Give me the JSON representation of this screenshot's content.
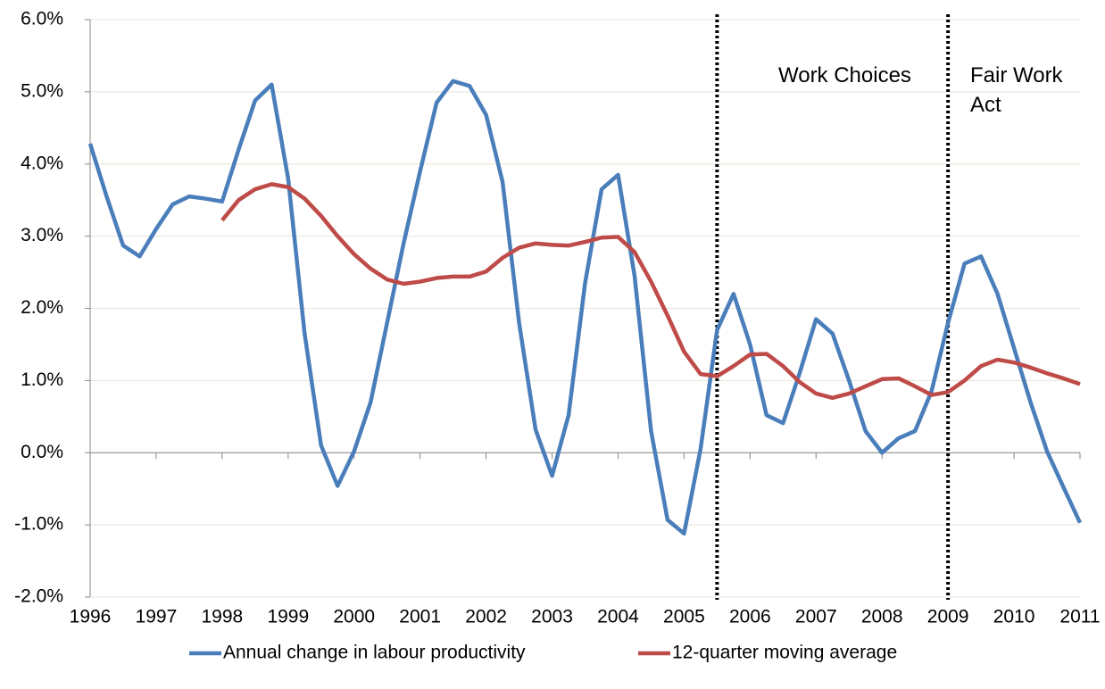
{
  "chart_data": {
    "type": "line",
    "x": [
      1996,
      1996.25,
      1996.5,
      1996.75,
      1997,
      1997.25,
      1997.5,
      1997.75,
      1998,
      1998.25,
      1998.5,
      1998.75,
      1999,
      1999.25,
      1999.5,
      1999.75,
      2000,
      2000.25,
      2000.5,
      2000.75,
      2001,
      2001.25,
      2001.5,
      2001.75,
      2002,
      2002.25,
      2002.5,
      2002.75,
      2003,
      2003.25,
      2003.5,
      2003.75,
      2004,
      2004.25,
      2004.5,
      2004.75,
      2005,
      2005.25,
      2005.5,
      2005.75,
      2006,
      2006.25,
      2006.5,
      2006.75,
      2007,
      2007.25,
      2007.5,
      2007.75,
      2008,
      2008.25,
      2008.5,
      2008.75,
      2009,
      2009.25,
      2009.5,
      2009.75,
      2010,
      2010.25,
      2010.5,
      2010.75,
      2011
    ],
    "series": [
      {
        "name": "Annual change in labour productivity",
        "color": "#4a7ebb",
        "values": [
          4.28,
          3.55,
          2.87,
          2.72,
          3.1,
          3.44,
          3.55,
          3.52,
          3.48,
          4.2,
          4.88,
          5.1,
          3.8,
          1.65,
          0.1,
          -0.46,
          0.02,
          0.7,
          1.8,
          2.9,
          3.9,
          4.85,
          5.15,
          5.08,
          4.68,
          3.75,
          1.8,
          0.32,
          -0.32,
          0.52,
          2.35,
          3.65,
          3.85,
          2.45,
          0.3,
          -0.93,
          -1.12,
          0.05,
          1.7,
          2.2,
          1.5,
          0.52,
          0.41,
          1.1,
          1.85,
          1.65,
          1.0,
          0.3,
          0.0,
          0.2,
          0.3,
          0.85,
          1.8,
          2.62,
          2.72,
          2.2,
          1.45,
          0.7,
          0.02,
          -0.48,
          -0.97
        ]
      },
      {
        "name": "12-quarter moving average",
        "color": "#be4b48",
        "values": [
          null,
          null,
          null,
          null,
          null,
          null,
          null,
          null,
          3.22,
          3.5,
          3.65,
          3.72,
          3.68,
          3.52,
          3.28,
          3.0,
          2.75,
          2.55,
          2.4,
          2.34,
          2.37,
          2.42,
          2.44,
          2.44,
          2.51,
          2.7,
          2.84,
          2.9,
          2.88,
          2.87,
          2.92,
          2.98,
          2.99,
          2.78,
          2.37,
          1.9,
          1.4,
          1.09,
          1.06,
          1.2,
          1.36,
          1.37,
          1.2,
          0.98,
          0.82,
          0.76,
          0.82,
          0.92,
          1.02,
          1.03,
          0.92,
          0.8,
          0.84,
          1.0,
          1.2,
          1.29,
          1.25,
          1.18,
          1.1,
          1.03,
          0.95
        ]
      }
    ],
    "events": [
      {
        "x": 2005.5,
        "label": "Work Choices"
      },
      {
        "x": 2009,
        "label": "Fair Work Act"
      }
    ],
    "xlim": [
      1996,
      2011
    ],
    "xticks": [
      1996,
      1997,
      1998,
      1999,
      2000,
      2001,
      2002,
      2003,
      2004,
      2005,
      2006,
      2007,
      2008,
      2009,
      2010,
      2011
    ],
    "ylim": [
      -2,
      6
    ],
    "yticks": [
      {
        "value": -2,
        "label": "-2.0%"
      },
      {
        "value": -1,
        "label": "-1.0%"
      },
      {
        "value": 0,
        "label": "0.0%"
      },
      {
        "value": 1,
        "label": "1.0%"
      },
      {
        "value": 2,
        "label": "2.0%"
      },
      {
        "value": 3,
        "label": "3.0%"
      },
      {
        "value": 4,
        "label": "4.0%"
      },
      {
        "value": 5,
        "label": "5.0%"
      },
      {
        "value": 6,
        "label": "6.0%"
      }
    ],
    "grid": true,
    "legend": "bottom"
  }
}
